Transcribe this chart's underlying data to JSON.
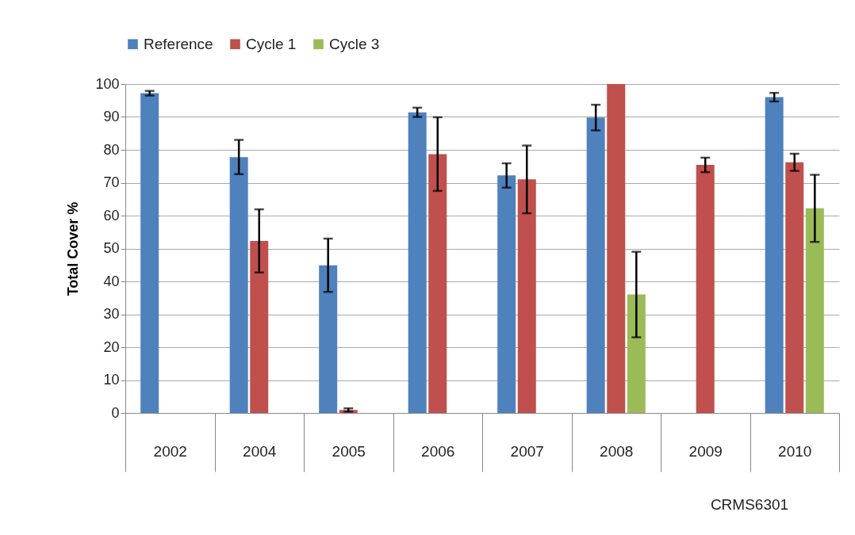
{
  "chart_data": {
    "type": "bar",
    "ylabel": "Total Cover %",
    "annotations": [
      "CRMS6301"
    ],
    "categories": [
      "2002",
      "2004",
      "2005",
      "2006",
      "2007",
      "2008",
      "2009",
      "2010"
    ],
    "series": [
      {
        "name": "Reference",
        "color": "#4f81bd",
        "values": [
          97.2,
          77.8,
          44.9,
          91.4,
          72.2,
          89.8,
          null,
          96
        ],
        "errors": [
          0.7,
          5.2,
          8.1,
          1.4,
          3.7,
          3.9,
          null,
          1.3
        ]
      },
      {
        "name": "Cycle 1",
        "color": "#c0504d",
        "values": [
          null,
          52.3,
          0.9,
          78.7,
          71.0,
          100,
          75.4,
          76.2
        ],
        "errors": [
          null,
          9.6,
          0.5,
          11.2,
          10.3,
          null,
          2.2,
          2.6
        ]
      },
      {
        "name": "Cycle 3",
        "color": "#9bbb59",
        "values": [
          null,
          null,
          null,
          null,
          null,
          36,
          null,
          62.2
        ],
        "errors": [
          null,
          null,
          null,
          null,
          null,
          13,
          null,
          10.2
        ]
      }
    ],
    "ylim": [
      0,
      100
    ],
    "yticks": [
      0,
      10,
      20,
      30,
      40,
      50,
      60,
      70,
      80,
      90,
      100
    ],
    "grid": "y",
    "legend": "top"
  }
}
